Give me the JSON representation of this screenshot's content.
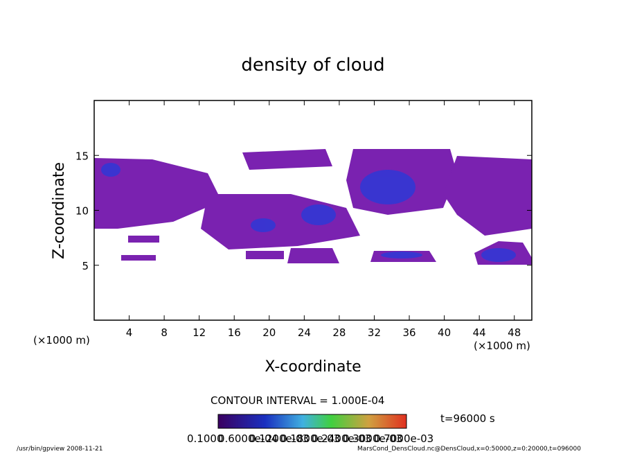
{
  "chart_data": {
    "type": "contour",
    "title": "density of cloud",
    "xlabel": "X-coordinate",
    "ylabel": "Z-coordinate",
    "unit_label": "(×1000 m)",
    "xlim": [
      0,
      50
    ],
    "xticks": [
      4,
      8,
      12,
      16,
      20,
      24,
      28,
      32,
      36,
      40,
      44,
      48
    ],
    "ylim": [
      0,
      20
    ],
    "yticks": [
      5,
      10,
      15
    ],
    "contour_interval": "CONTOUR INTERVAL = 1.000E-04",
    "time_label": "t=96000 s",
    "colorbar_labels": [
      "0.1000",
      "0.6000e-04",
      "0.1200e-03",
      "0.1800e-03",
      "0.2400e-03",
      "0.3000e-03",
      "0.7000e-03"
    ],
    "footer_left": "/usr/bin/gpview   2008-11-21",
    "footer_right": "MarsCond_DensCloud.nc@DensCloud,x=0:50000,z=0:20000,t=096000"
  }
}
